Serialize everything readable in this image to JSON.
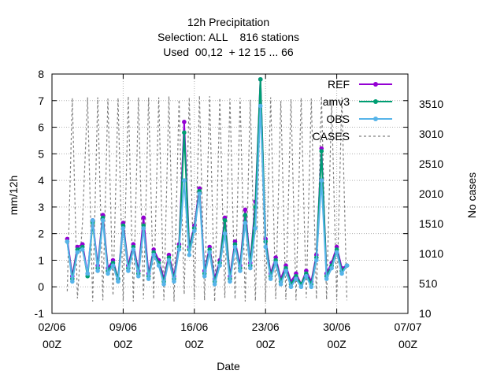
{
  "chart_data": {
    "type": "line",
    "title_lines": [
      "12h Precipitation",
      "Selection: ALL    816 stations",
      "Used  00,12  + 12 15 ... 66"
    ],
    "xlabel": "Date",
    "ylabel": "mm/12h",
    "y2label": "No cases",
    "xlim": [
      0,
      70
    ],
    "ylim": [
      -1,
      8
    ],
    "y2lim": [
      10,
      4010
    ],
    "x_ticks": [
      {
        "x": 0,
        "line1": "02/06",
        "line2": "00Z"
      },
      {
        "x": 14,
        "line1": "09/06",
        "line2": "00Z"
      },
      {
        "x": 28,
        "line1": "16/06",
        "line2": "00Z"
      },
      {
        "x": 42,
        "line1": "23/06",
        "line2": "00Z"
      },
      {
        "x": 56,
        "line1": "30/06",
        "line2": "00Z"
      },
      {
        "x": 70,
        "line1": "07/07",
        "line2": "00Z"
      }
    ],
    "y_ticks": [
      -1,
      0,
      1,
      2,
      3,
      4,
      5,
      6,
      7,
      8
    ],
    "y2_ticks": [
      10,
      510,
      1010,
      1510,
      2010,
      2510,
      3010,
      3510
    ],
    "grid": true,
    "legend_position": "top-right",
    "x_unit_note": "x in half-days since 02/06 00Z",
    "series": [
      {
        "name": "REF",
        "color": "#9400d3",
        "style": "line-points",
        "x": [
          3,
          4,
          5,
          6,
          7,
          8,
          9,
          10,
          11,
          12,
          13,
          14,
          15,
          16,
          17,
          18,
          19,
          20,
          21,
          22,
          23,
          24,
          25,
          26,
          27,
          28,
          29,
          30,
          31,
          32,
          33,
          34,
          35,
          36,
          37,
          38,
          39,
          40,
          41,
          42,
          43,
          44,
          45,
          46,
          47,
          48,
          49,
          50,
          51,
          52,
          53,
          54,
          55,
          56,
          57,
          58
        ],
        "y": [
          1.8,
          0.4,
          1.5,
          1.6,
          0.5,
          2.5,
          0.8,
          2.7,
          0.7,
          1.0,
          0.3,
          2.4,
          0.8,
          1.6,
          0.6,
          2.6,
          0.5,
          1.4,
          1.0,
          0.3,
          1.2,
          0.4,
          1.6,
          6.2,
          1.5,
          2.3,
          3.7,
          0.6,
          1.5,
          0.3,
          1.0,
          2.6,
          0.4,
          1.7,
          0.8,
          2.9,
          0.9,
          3.2,
          7.8,
          1.8,
          0.5,
          1.1,
          0.3,
          0.8,
          0.2,
          0.5,
          0.1,
          0.6,
          0.2,
          1.2,
          5.2,
          0.5,
          0.9,
          1.5,
          0.7,
          0.8
        ]
      },
      {
        "name": "amv3",
        "color": "#009e73",
        "style": "line-points",
        "x": [
          3,
          4,
          5,
          6,
          7,
          8,
          9,
          10,
          11,
          12,
          13,
          14,
          15,
          16,
          17,
          18,
          19,
          20,
          21,
          22,
          23,
          24,
          25,
          26,
          27,
          28,
          29,
          30,
          31,
          32,
          33,
          34,
          35,
          36,
          37,
          38,
          39,
          40,
          41,
          42,
          43,
          44,
          45,
          46,
          47,
          48,
          49,
          50,
          51,
          52,
          53,
          54,
          55,
          56,
          57,
          58
        ],
        "y": [
          1.7,
          0.3,
          1.4,
          1.5,
          0.4,
          2.4,
          0.7,
          2.6,
          0.6,
          0.9,
          0.3,
          2.3,
          0.7,
          1.5,
          0.5,
          2.3,
          0.4,
          1.3,
          0.9,
          0.2,
          1.1,
          0.3,
          1.5,
          5.8,
          1.4,
          2.2,
          3.6,
          0.5,
          1.4,
          0.2,
          0.9,
          2.5,
          0.3,
          1.6,
          0.7,
          2.7,
          0.8,
          3.0,
          7.8,
          1.7,
          0.4,
          1.0,
          0.2,
          0.7,
          0.1,
          0.4,
          0.1,
          0.5,
          0.1,
          1.1,
          5.1,
          0.4,
          0.8,
          1.4,
          0.6,
          0.8
        ]
      },
      {
        "name": "OBS",
        "color": "#56b4e9",
        "style": "line-points",
        "x": [
          3,
          4,
          5,
          6,
          7,
          8,
          9,
          10,
          11,
          12,
          13,
          14,
          15,
          16,
          17,
          18,
          19,
          20,
          21,
          22,
          23,
          24,
          25,
          26,
          27,
          28,
          29,
          30,
          31,
          32,
          33,
          34,
          35,
          36,
          37,
          38,
          39,
          40,
          41,
          42,
          43,
          44,
          45,
          46,
          47,
          48,
          49,
          50,
          51,
          52,
          53,
          54,
          55,
          56,
          57,
          58
        ],
        "y": [
          1.7,
          0.2,
          1.3,
          1.4,
          0.5,
          2.5,
          0.6,
          2.5,
          0.5,
          0.8,
          0.2,
          2.2,
          0.6,
          1.4,
          0.4,
          2.2,
          0.3,
          1.2,
          0.8,
          0.1,
          1.0,
          0.2,
          1.4,
          4.0,
          1.2,
          2.1,
          3.5,
          0.4,
          1.3,
          0.1,
          0.8,
          2.0,
          0.2,
          1.5,
          0.6,
          2.4,
          0.7,
          2.2,
          6.8,
          1.5,
          0.3,
          0.9,
          0.1,
          0.6,
          0.0,
          0.3,
          0.0,
          0.4,
          0.0,
          1.0,
          4.0,
          0.3,
          0.7,
          1.3,
          0.5,
          0.8
        ]
      },
      {
        "name": "CASES",
        "color": "#808080",
        "style": "dashed",
        "axis": "y2",
        "x": [
          3,
          4,
          5,
          6,
          7,
          8,
          9,
          10,
          11,
          12,
          13,
          14,
          15,
          16,
          17,
          18,
          19,
          20,
          21,
          22,
          23,
          24,
          25,
          26,
          27,
          28,
          29,
          30,
          31,
          32,
          33,
          34,
          35,
          36,
          37,
          38,
          39,
          40,
          41,
          42,
          43,
          44,
          45,
          46,
          47,
          48,
          49,
          50,
          51,
          52,
          53,
          54,
          55,
          56,
          57,
          58
        ],
        "y": [
          380,
          3610,
          260,
          1520,
          3620,
          210,
          3620,
          230,
          3600,
          310,
          3610,
          220,
          3640,
          210,
          3620,
          250,
          3620,
          250,
          3620,
          230,
          3640,
          210,
          3580,
          330,
          3620,
          240,
          3650,
          230,
          3640,
          210,
          3610,
          270,
          3600,
          250,
          3610,
          210,
          3580,
          220,
          3620,
          200,
          3620,
          250,
          3560,
          240,
          3590,
          230,
          3610,
          270,
          3600,
          250,
          3640,
          240,
          3560,
          230,
          3620,
          230
        ]
      }
    ]
  }
}
